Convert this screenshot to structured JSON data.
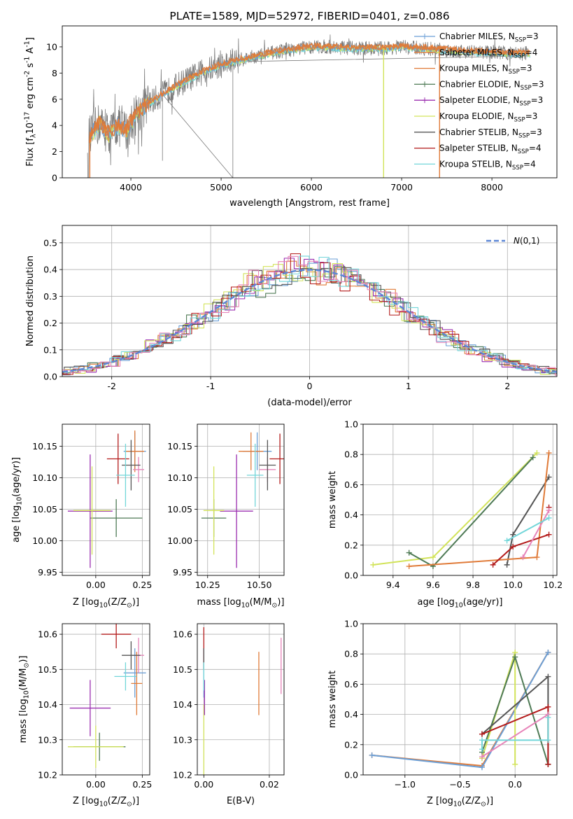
{
  "colors": {
    "Chabrier MILES": "#6b9fd6",
    "Salpeter MILES": "#e07b39",
    "Kroupa MILES": "#e07b39",
    "Chabrier ELODIE": "#4e7a55",
    "Salpeter ELODIE": "#9b2fb0",
    "Kroupa ELODIE": "#d2e35a",
    "Chabrier STELIB": "#555555",
    "Salpeter STELIB": "#b31b1b",
    "Kroupa STELIB": "#72d6d9",
    "pink": "#e784b9",
    "normal": "#5b86d6"
  },
  "chart_data": [
    {
      "id": "spectrum",
      "type": "line",
      "title": "PLATE=1589, MJD=52972, FIBERID=0401, z=0.086",
      "xlabel": "wavelength [Angstrom, rest frame]",
      "ylabel": "Flux [f$_\\lambda$10$^{-17}$ erg cm$^{-2}$ s$^{-1}$ A$^{-1}$]",
      "xlim": [
        3240,
        8720
      ],
      "ylim": [
        0,
        11.6
      ],
      "xticks": [
        4000,
        5000,
        6000,
        7000,
        8000
      ],
      "yticks": [
        0,
        2,
        4,
        6,
        8,
        10
      ],
      "legend": "top-right",
      "series": [
        {
          "name": "Chabrier MILES, N$_{SSP}$=3",
          "color": "#6b9fd6"
        },
        {
          "name": "Salpeter MILES, N$_{SSP}$=4",
          "color": "#e07b39"
        },
        {
          "name": "Kroupa MILES, N$_{SSP}$=3",
          "color": "#e07b39"
        },
        {
          "name": "Chabrier ELODIE, N$_{SSP}$=3",
          "color": "#4e7a55"
        },
        {
          "name": "Salpeter ELODIE, N$_{SSP}$=3",
          "color": "#9b2fb0"
        },
        {
          "name": "Kroupa ELODIE, N$_{SSP}$=3",
          "color": "#d2e35a"
        },
        {
          "name": "Chabrier STELIB, N$_{SSP}$=3",
          "color": "#555555"
        },
        {
          "name": "Salpeter STELIB, N$_{SSP}$=4",
          "color": "#b31b1b"
        },
        {
          "name": "Kroupa STELIB, N$_{SSP}$=4",
          "color": "#72d6d9"
        }
      ],
      "model_continuum": {
        "x": [
          3550,
          3650,
          3750,
          3850,
          3950,
          4050,
          4200,
          4400,
          4600,
          4800,
          5000,
          5200,
          5400,
          5600,
          5800,
          6000,
          6200,
          6400,
          6600,
          6800,
          7000,
          7200,
          7400,
          7600,
          7800,
          8000,
          8200,
          8400
        ],
        "y": [
          3.2,
          4.2,
          3.3,
          4.0,
          3.6,
          4.8,
          5.7,
          6.6,
          7.4,
          8.1,
          8.6,
          9.0,
          9.3,
          9.6,
          9.8,
          10.0,
          10.0,
          9.9,
          9.9,
          9.9,
          10.0,
          9.9,
          9.8,
          9.7,
          9.6,
          9.6,
          9.5,
          9.5
        ]
      }
    },
    {
      "id": "residuals",
      "type": "bar",
      "xlabel": "(data-model)/error",
      "ylabel": "Normed distribution",
      "xlim": [
        -2.5,
        2.5
      ],
      "ylim": [
        0,
        0.565
      ],
      "xticks": [
        -2,
        -1,
        0,
        1,
        2
      ],
      "yticks": [
        0.0,
        0.1,
        0.2,
        0.3,
        0.4,
        0.5
      ],
      "bin_width": 0.1,
      "legend": "top-right",
      "reference": {
        "name": "$\\mathcal{N}(0,1)$",
        "mean": 0,
        "sigma": 1
      }
    },
    {
      "id": "age_vs_Z",
      "type": "scatter",
      "xlabel": "Z [log$_{10}$(Z/Z$_\\odot$)]",
      "ylabel": "age  [log$_{10}$(age/yr)]",
      "xlim": [
        -0.18,
        0.29
      ],
      "ylim": [
        9.945,
        10.185
      ],
      "xticks": [
        0.0,
        0.25
      ],
      "ytick_labels": [
        "9.95",
        "10.00",
        "10.05",
        "10.10",
        "10.15"
      ],
      "points": [
        {
          "x": 0.21,
          "xerr": 0.06,
          "y": 10.142,
          "yerr": 0.03,
          "color": "#6b9fd6"
        },
        {
          "x": 0.21,
          "xerr": 0.05,
          "y": 10.142,
          "yerr": 0.033,
          "color": "#e07b39"
        },
        {
          "x": 0.23,
          "xerr": 0.03,
          "y": 10.113,
          "yerr": 0.02,
          "color": "#e784b9"
        },
        {
          "x": 0.11,
          "xerr": 0.14,
          "y": 10.036,
          "yerr": 0.03,
          "color": "#4e7a55"
        },
        {
          "x": -0.03,
          "xerr": 0.12,
          "y": 10.047,
          "yerr": 0.09,
          "color": "#9b2fb0"
        },
        {
          "x": -0.02,
          "xerr": 0.1,
          "y": 10.048,
          "yerr": 0.07,
          "color": "#d2e35a"
        },
        {
          "x": 0.19,
          "xerr": 0.05,
          "y": 10.12,
          "yerr": 0.04,
          "color": "#555555"
        },
        {
          "x": 0.12,
          "xerr": 0.06,
          "y": 10.13,
          "yerr": 0.04,
          "color": "#b31b1b"
        },
        {
          "x": 0.16,
          "xerr": 0.05,
          "y": 10.104,
          "yerr": 0.05,
          "color": "#72d6d9"
        }
      ]
    },
    {
      "id": "age_vs_mass",
      "type": "scatter",
      "xlabel": "mass [log$_{10}$(M/M$_\\odot$)]",
      "ylabel": "",
      "xlim": [
        10.2,
        10.62
      ],
      "ylim": [
        9.945,
        10.185
      ],
      "xticks": [
        10.25,
        10.5
      ],
      "ytick_labels": [
        "9.95",
        "10.00",
        "10.05",
        "10.10",
        "10.15"
      ],
      "points": [
        {
          "x": 10.49,
          "xerr": 0.07,
          "y": 10.142,
          "yerr": 0.03,
          "color": "#6b9fd6"
        },
        {
          "x": 10.46,
          "xerr": 0.06,
          "y": 10.142,
          "yerr": 0.03,
          "color": "#e07b39"
        },
        {
          "x": 10.54,
          "xerr": 0.04,
          "y": 10.113,
          "yerr": 0.02,
          "color": "#e784b9"
        },
        {
          "x": 10.28,
          "xerr": 0.06,
          "y": 10.036,
          "yerr": 0.03,
          "color": "#4e7a55"
        },
        {
          "x": 10.39,
          "xerr": 0.08,
          "y": 10.047,
          "yerr": 0.09,
          "color": "#9b2fb0"
        },
        {
          "x": 10.28,
          "xerr": 0.05,
          "y": 10.048,
          "yerr": 0.07,
          "color": "#d2e35a"
        },
        {
          "x": 10.54,
          "xerr": 0.04,
          "y": 10.12,
          "yerr": 0.04,
          "color": "#555555"
        },
        {
          "x": 10.6,
          "xerr": 0.05,
          "y": 10.13,
          "yerr": 0.04,
          "color": "#b31b1b"
        },
        {
          "x": 10.48,
          "xerr": 0.04,
          "y": 10.104,
          "yerr": 0.05,
          "color": "#72d6d9"
        }
      ]
    },
    {
      "id": "weight_vs_age",
      "type": "line",
      "xlabel": "age  [log$_{10}$(age/yr)]",
      "ylabel": "mass weight",
      "xlim": [
        9.25,
        10.22
      ],
      "ylim": [
        0,
        1.0
      ],
      "xticks": [
        9.4,
        9.6,
        9.8,
        10.0,
        10.2
      ],
      "yticks": [
        0.0,
        0.2,
        0.4,
        0.6,
        0.8,
        1.0
      ],
      "series": [
        {
          "color": "#d2e35a",
          "x": [
            9.3,
            9.6,
            10.12
          ],
          "y": [
            0.07,
            0.12,
            0.81
          ]
        },
        {
          "color": "#4e7a55",
          "x": [
            9.48,
            9.6,
            10.1
          ],
          "y": [
            0.15,
            0.06,
            0.78
          ]
        },
        {
          "color": "#555555",
          "x": [
            9.97,
            10.0,
            10.18
          ],
          "y": [
            0.07,
            0.27,
            0.65
          ]
        },
        {
          "color": "#e07b39",
          "x": [
            9.48,
            10.12,
            10.18
          ],
          "y": [
            0.06,
            0.12,
            0.81
          ]
        },
        {
          "color": "#b31b1b",
          "x": [
            9.9,
            10.0,
            10.18
          ],
          "y": [
            0.07,
            0.19,
            0.27
          ]
        },
        {
          "color": "#b31b1b",
          "x": [
            10.18
          ],
          "y": [
            0.45
          ]
        },
        {
          "color": "#e784b9",
          "x": [
            10.05,
            10.18
          ],
          "y": [
            0.12,
            0.43
          ]
        },
        {
          "color": "#72d6d9",
          "x": [
            9.97,
            10.18
          ],
          "y": [
            0.23,
            0.38
          ]
        }
      ]
    },
    {
      "id": "mass_vs_Z",
      "type": "scatter",
      "xlabel": "Z [log$_{10}$(Z/Z$_\\odot$)]",
      "ylabel": "mass [log$_{10}$(M/M$_\\odot$)]",
      "xlim": [
        -0.18,
        0.29
      ],
      "ylim": [
        10.2,
        10.63
      ],
      "xticks": [
        0.0,
        0.25
      ],
      "ytick_labels": [
        "10.2",
        "10.3",
        "10.4",
        "10.5",
        "10.6"
      ],
      "points": [
        {
          "x": 0.21,
          "xerr": 0.06,
          "y": 10.49,
          "yerr": 0.07,
          "color": "#6b9fd6"
        },
        {
          "x": 0.22,
          "xerr": 0.03,
          "y": 10.46,
          "yerr": 0.09,
          "color": "#e07b39"
        },
        {
          "x": 0.23,
          "xerr": 0.03,
          "y": 10.54,
          "yerr": 0.05,
          "color": "#e784b9"
        },
        {
          "x": 0.02,
          "xerr": 0.14,
          "y": 10.28,
          "yerr": 0.04,
          "color": "#4e7a55"
        },
        {
          "x": -0.03,
          "xerr": 0.11,
          "y": 10.39,
          "yerr": 0.08,
          "color": "#9b2fb0"
        },
        {
          "x": 0.0,
          "xerr": 0.15,
          "y": 10.28,
          "yerr": 0.06,
          "color": "#d2e35a"
        },
        {
          "x": 0.19,
          "xerr": 0.05,
          "y": 10.54,
          "yerr": 0.04,
          "color": "#555555"
        },
        {
          "x": 0.11,
          "xerr": 0.08,
          "y": 10.6,
          "yerr": 0.04,
          "color": "#b31b1b"
        },
        {
          "x": 0.16,
          "xerr": 0.06,
          "y": 10.48,
          "yerr": 0.04,
          "color": "#72d6d9"
        }
      ]
    },
    {
      "id": "mass_vs_ebv",
      "type": "scatter",
      "xlabel": "E(B-V)",
      "ylabel": "",
      "xlim": [
        -0.002,
        0.0245
      ],
      "ylim": [
        10.2,
        10.63
      ],
      "xticks": [
        0.0,
        0.02
      ],
      "xtick_labels": [
        "0.00",
        "0.02"
      ],
      "ytick_labels": [
        "10.2",
        "10.3",
        "10.4",
        "10.5",
        "10.6"
      ],
      "points": [
        {
          "x": 0.0,
          "y": 10.49,
          "yerr": 0.07,
          "color": "#6b9fd6"
        },
        {
          "x": 0.0168,
          "y": 10.46,
          "yerr": 0.09,
          "color": "#e07b39"
        },
        {
          "x": 0.0236,
          "y": 10.51,
          "yerr": 0.08,
          "color": "#e784b9"
        },
        {
          "x": 0.0,
          "y": 10.3,
          "yerr": 0.1,
          "color": "#d2e35a"
        },
        {
          "x": 0.0002,
          "y": 10.42,
          "yerr": 0.05,
          "color": "#9b2fb0"
        },
        {
          "x": 0.0,
          "y": 10.56,
          "yerr": 0.06,
          "color": "#b31b1b"
        },
        {
          "x": 0.0,
          "y": 10.53,
          "yerr": 0.03,
          "color": "#555555"
        },
        {
          "x": 0.0,
          "y": 10.48,
          "yerr": 0.04,
          "color": "#72d6d9"
        }
      ]
    },
    {
      "id": "weight_vs_Z",
      "type": "line",
      "xlabel": "Z [log$_{10}$(Z/Z$_\\odot$)]",
      "ylabel": "mass weight",
      "xlim": [
        -1.38,
        0.38
      ],
      "ylim": [
        0,
        1.0
      ],
      "xticks": [
        -1.0,
        -0.5,
        0.0
      ],
      "xtick_labels": [
        "−1.0",
        "−0.5",
        "0.0"
      ],
      "yticks": [
        0.0,
        0.2,
        0.4,
        0.6,
        0.8,
        1.0
      ],
      "series": [
        {
          "color": "#e07b39",
          "x": [
            -1.3,
            -0.3,
            0.3
          ],
          "y": [
            0.13,
            0.06,
            0.81
          ]
        },
        {
          "color": "#6b9fd6",
          "x": [
            -1.3,
            -0.3,
            0.3
          ],
          "y": [
            0.13,
            0.05,
            0.81
          ]
        },
        {
          "color": "#d2e35a",
          "x": [
            -0.3,
            0.0,
            0.0
          ],
          "y": [
            0.11,
            0.81,
            0.07
          ]
        },
        {
          "color": "#4e7a55",
          "x": [
            -0.3,
            0.0,
            0.3
          ],
          "y": [
            0.15,
            0.78,
            0.07
          ]
        },
        {
          "color": "#555555",
          "x": [
            -0.3,
            0.3,
            0.3
          ],
          "y": [
            0.27,
            0.65,
            0.07
          ]
        },
        {
          "color": "#b31b1b",
          "x": [
            -0.3,
            0.3,
            0.3
          ],
          "y": [
            0.27,
            0.45,
            0.07
          ]
        },
        {
          "color": "#e784b9",
          "x": [
            -0.3,
            0.3
          ],
          "y": [
            0.12,
            0.4
          ]
        },
        {
          "color": "#72d6d9",
          "x": [
            -0.3,
            -0.3,
            0.3,
            0.3
          ],
          "y": [
            0.17,
            0.23,
            0.23,
            0.38
          ]
        }
      ]
    }
  ]
}
